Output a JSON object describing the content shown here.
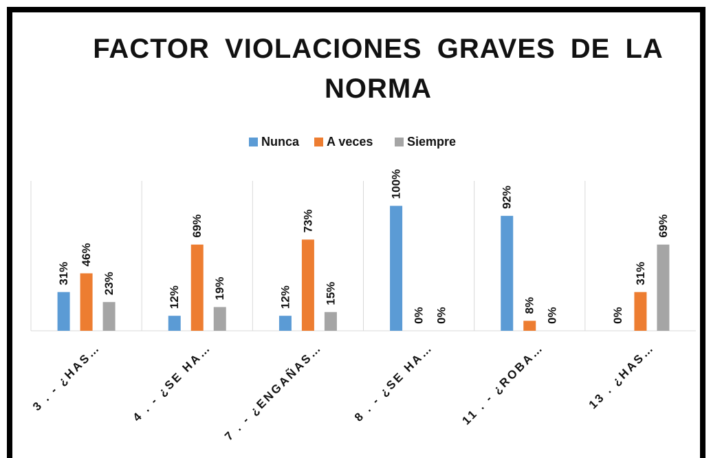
{
  "chart_data": {
    "type": "bar",
    "title": "FACTOR VIOLACIONES GRAVES DE LA NORMA",
    "categories": [
      "3 . - ¿HAS…",
      "4 . - ¿SE HA…",
      "7 . - ¿ENGAÑAS…",
      "8 . - ¿SE HA…",
      "11 . - ¿ROBA…",
      "13 . ¿HAS…"
    ],
    "series": [
      {
        "name": "Nunca",
        "color": "#5b9bd5",
        "values": [
          31,
          12,
          12,
          100,
          92,
          0
        ],
        "value_labels": [
          "31%",
          "12%",
          "12%",
          "100%",
          "92%",
          "0%"
        ]
      },
      {
        "name": "A veces",
        "color": "#ed7d31",
        "values": [
          46,
          69,
          73,
          0,
          8,
          31
        ],
        "value_labels": [
          "46%",
          "69%",
          "73%",
          "0%",
          "8%",
          "31%"
        ]
      },
      {
        "name": "Siempre",
        "color": "#a5a5a5",
        "values": [
          23,
          19,
          15,
          0,
          0,
          69
        ],
        "value_labels": [
          "23%",
          "19%",
          "15%",
          "0%",
          "0%",
          "69%"
        ]
      }
    ],
    "ylim": [
      0,
      120
    ]
  }
}
